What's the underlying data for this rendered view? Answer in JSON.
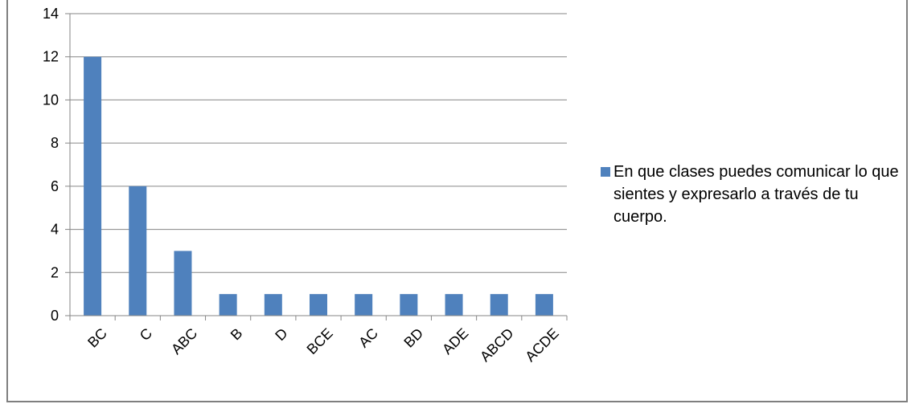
{
  "chart_data": {
    "type": "bar",
    "categories": [
      "BC",
      "C",
      "ABC",
      "B",
      "D",
      "BCE",
      "AC",
      "BD",
      "ADE",
      "ABCD",
      "ACDE"
    ],
    "series": [
      {
        "name": "En que clases puedes comunicar lo que sientes y expresarlo a través de tu cuerpo.",
        "values": [
          12,
          6,
          3,
          1,
          1,
          1,
          1,
          1,
          1,
          1,
          1
        ],
        "color": "#4f81bd"
      }
    ],
    "title": "",
    "xlabel": "",
    "ylabel": "",
    "ylim": [
      0,
      14
    ],
    "yticks": [
      0,
      2,
      4,
      6,
      8,
      10,
      12,
      14
    ],
    "grid": true,
    "legend_position": "right"
  }
}
